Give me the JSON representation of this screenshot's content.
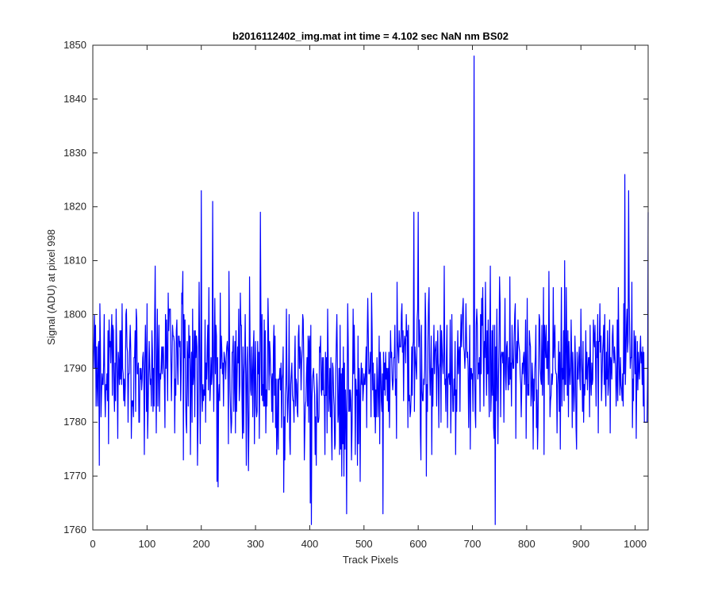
{
  "chart_data": {
    "type": "line",
    "title": "b2016112402_img.mat int time = 4.102 sec  NaN nm BS02",
    "xlabel": "Track Pixels",
    "ylabel": "Signal (ADU) at pixel 998",
    "xlim": [
      0,
      1024
    ],
    "ylim": [
      1760,
      1850
    ],
    "xticks": [
      0,
      100,
      200,
      300,
      400,
      500,
      600,
      700,
      800,
      900,
      1000
    ],
    "yticks": [
      1760,
      1770,
      1780,
      1790,
      1800,
      1810,
      1820,
      1830,
      1840,
      1850
    ],
    "grid": false,
    "line_color": "#0000ff",
    "series": [
      {
        "x": [
          1,
          200,
          221,
          229,
          231,
          309,
          401,
          403,
          468,
          535,
          592,
          600,
          703,
          706,
          742,
          981,
          988,
          1020,
          1024
        ],
        "values": [
          1790,
          1823,
          1821,
          1769,
          1768,
          1819,
          1765,
          1761,
          1763,
          1763,
          1819,
          1819,
          1848,
          1779,
          1761,
          1826,
          1823,
          1780,
          1819
        ],
        "note_noise_mean": 1790,
        "note_noise_sd": 7
      }
    ]
  }
}
